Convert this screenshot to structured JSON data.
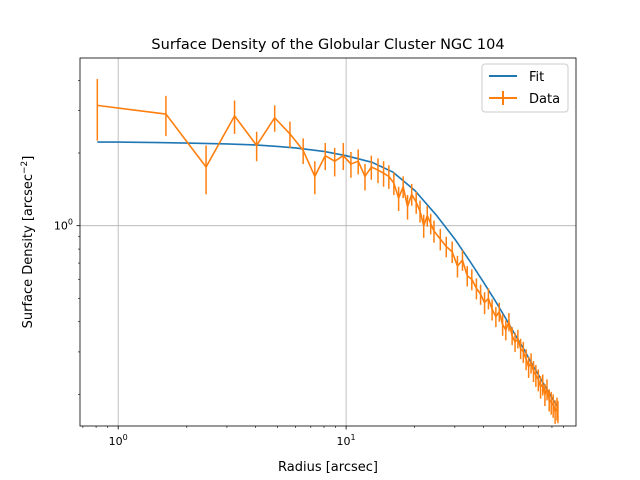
{
  "chart_data": {
    "type": "line",
    "title": "Surface Density of the Globular Cluster NGC 104",
    "xlabel": "Radius [arcsec]",
    "ylabel_main": "Surface Density [arcsec",
    "ylabel_sup": "−2",
    "ylabel_end": "]",
    "xscale": "log",
    "yscale": "log",
    "xlim": [
      0.68,
      102
    ],
    "ylim": [
      0.148,
      4.95
    ],
    "grid": "major",
    "legend_position": "top-right",
    "x_ticks": [
      {
        "value": 1,
        "base": "10",
        "exp": "0"
      },
      {
        "value": 10,
        "base": "10",
        "exp": "1"
      }
    ],
    "y_ticks": [
      {
        "value": 1,
        "base": "10",
        "exp": "0"
      }
    ],
    "colors": {
      "fit": "#1f77b4",
      "data": "#ff7f0e",
      "grid": "#b0b0b0"
    },
    "series": [
      {
        "name": "Fit",
        "kind": "line",
        "x": [
          0.81,
          1,
          1.5,
          2,
          3,
          4,
          5,
          6,
          8,
          10,
          13,
          16,
          20,
          25,
          30,
          35,
          40,
          45,
          50,
          55,
          60,
          65,
          70,
          75,
          80,
          85
        ],
        "y": [
          2.22,
          2.22,
          2.21,
          2.2,
          2.18,
          2.16,
          2.13,
          2.1,
          2.03,
          1.95,
          1.83,
          1.67,
          1.4,
          1.1,
          0.88,
          0.71,
          0.585,
          0.49,
          0.415,
          0.355,
          0.31,
          0.27,
          0.24,
          0.215,
          0.193,
          0.177
        ]
      },
      {
        "name": "Data",
        "kind": "errorbar",
        "x": [
          0.81,
          1.62,
          2.43,
          3.24,
          4.05,
          4.86,
          5.67,
          6.48,
          7.29,
          8.1,
          8.91,
          9.72,
          10.5,
          11.3,
          12.1,
          12.9,
          13.8,
          14.6,
          15.4,
          16.2,
          17.0,
          17.8,
          18.6,
          19.4,
          20.3,
          21.1,
          21.9,
          22.7,
          23.5,
          24.3,
          25.9,
          27.5,
          29.2,
          30.8,
          32.4,
          34.0,
          35.6,
          37.3,
          38.9,
          40.5,
          42.1,
          43.7,
          45.4,
          47.0,
          48.6,
          50.2,
          51.8,
          53.5,
          55.1,
          56.7,
          58.3,
          59.9,
          61.6,
          63.2,
          64.8,
          66.4,
          68.0,
          69.7,
          71.3,
          72.9,
          74.5,
          76.1,
          77.8,
          79.4,
          81.0,
          82.6,
          84.2,
          85.0
        ],
        "y": [
          3.15,
          2.9,
          1.75,
          2.85,
          2.15,
          2.8,
          2.4,
          2.05,
          1.6,
          1.95,
          1.85,
          1.95,
          1.8,
          1.85,
          1.6,
          1.75,
          1.7,
          1.65,
          1.6,
          1.5,
          1.3,
          1.45,
          1.2,
          1.35,
          1.25,
          1.15,
          1.0,
          1.1,
          1.02,
          0.95,
          0.88,
          0.82,
          0.78,
          0.68,
          0.72,
          0.62,
          0.6,
          0.55,
          0.52,
          0.48,
          0.5,
          0.45,
          0.42,
          0.44,
          0.39,
          0.37,
          0.4,
          0.35,
          0.33,
          0.34,
          0.31,
          0.3,
          0.28,
          0.26,
          0.27,
          0.25,
          0.24,
          0.23,
          0.215,
          0.22,
          0.2,
          0.21,
          0.19,
          0.185,
          0.18,
          0.17,
          0.175,
          0.17
        ],
        "err": [
          0.9,
          0.55,
          0.4,
          0.45,
          0.3,
          0.35,
          0.3,
          0.25,
          0.25,
          0.25,
          0.25,
          0.25,
          0.22,
          0.22,
          0.2,
          0.2,
          0.2,
          0.2,
          0.18,
          0.16,
          0.15,
          0.15,
          0.14,
          0.14,
          0.13,
          0.12,
          0.11,
          0.11,
          0.1,
          0.1,
          0.09,
          0.08,
          0.08,
          0.07,
          0.07,
          0.06,
          0.06,
          0.055,
          0.05,
          0.05,
          0.05,
          0.045,
          0.04,
          0.04,
          0.04,
          0.035,
          0.035,
          0.03,
          0.03,
          0.03,
          0.03,
          0.03,
          0.028,
          0.026,
          0.026,
          0.025,
          0.025,
          0.024,
          0.023,
          0.022,
          0.021,
          0.021,
          0.02,
          0.02,
          0.02,
          0.019,
          0.019,
          0.018
        ]
      }
    ]
  }
}
